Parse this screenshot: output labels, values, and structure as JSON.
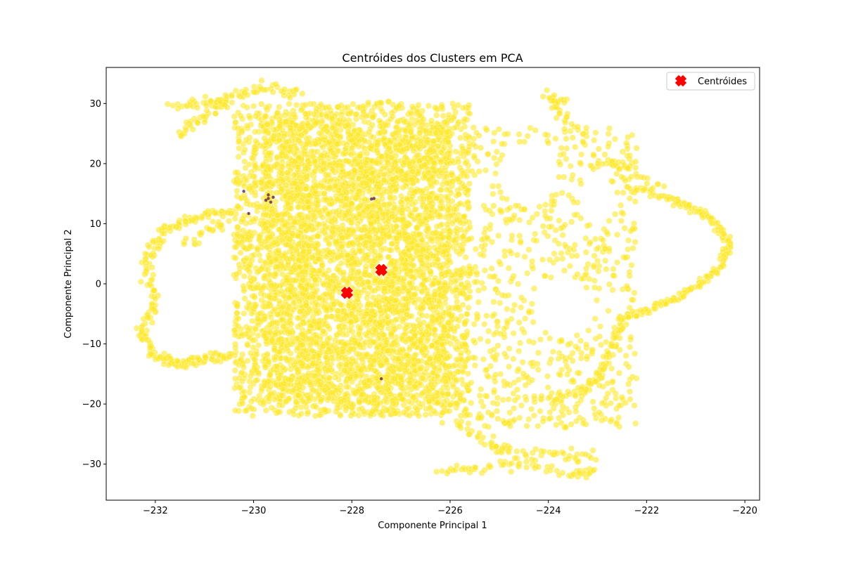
{
  "chart_data": {
    "type": "scatter",
    "title": "Centróides dos Clusters em PCA",
    "xlabel": "Componente Principal 1",
    "ylabel": "Componente Principal 2",
    "xlim": [
      -233,
      -219.7
    ],
    "ylim": [
      -36,
      36
    ],
    "xticks": [
      -232,
      -230,
      -228,
      -226,
      -224,
      -222,
      -220
    ],
    "xtick_labels": [
      "−232",
      "−230",
      "−228",
      "−226",
      "−224",
      "−222",
      "−220"
    ],
    "yticks": [
      -30,
      -20,
      -10,
      0,
      10,
      20,
      30
    ],
    "ytick_labels": [
      "−30",
      "−20",
      "−10",
      "0",
      "10",
      "20",
      "30"
    ],
    "grid": false,
    "legend_position": "top-right",
    "colors": {
      "cluster_points": "#fde725",
      "cluster_points_edge": "#ffffff",
      "minor_cluster_points": "#440154",
      "centroid": "#ff0000"
    },
    "series": [
      {
        "name": "Centróides",
        "marker": "X",
        "points": [
          {
            "x": -228.1,
            "y": -1.5
          },
          {
            "x": -227.4,
            "y": 2.3
          }
        ]
      }
    ],
    "minor_cluster_points": [
      {
        "x": -229.7,
        "y": 14.8
      },
      {
        "x": -229.7,
        "y": 14.2
      },
      {
        "x": -229.65,
        "y": 13.6
      },
      {
        "x": -229.6,
        "y": 14.4
      },
      {
        "x": -229.75,
        "y": 13.9
      },
      {
        "x": -227.6,
        "y": 14.1
      },
      {
        "x": -227.55,
        "y": 14.2
      },
      {
        "x": -230.1,
        "y": 11.7
      },
      {
        "x": -227.4,
        "y": -15.8
      },
      {
        "x": -230.2,
        "y": 15.4
      }
    ]
  }
}
